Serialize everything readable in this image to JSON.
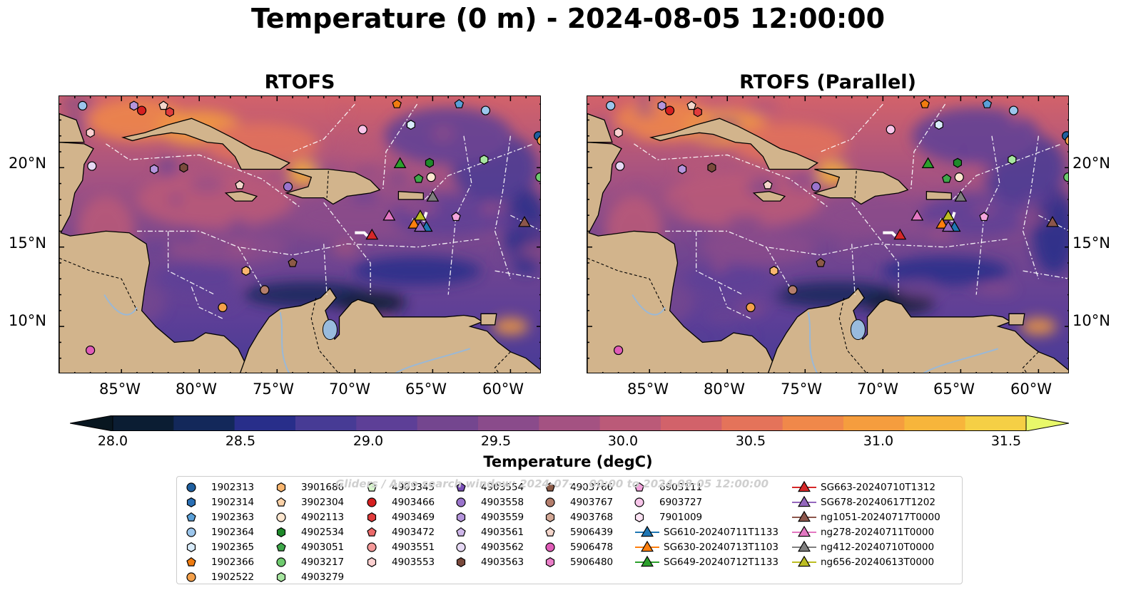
{
  "title": "Temperature (0 m) - 2024-08-05 12:00:00",
  "panels": [
    {
      "title": "RTOFS"
    },
    {
      "title": "RTOFS (Parallel)"
    }
  ],
  "axes": {
    "x_ticks": [
      "85°W",
      "80°W",
      "75°W",
      "70°W",
      "65°W",
      "60°W"
    ],
    "y_ticks": [
      "20°N",
      "15°N",
      "10°N"
    ],
    "lon_range": [
      -89,
      -58
    ],
    "lat_range": [
      7,
      24.5
    ]
  },
  "colorbar": {
    "label": "Temperature (degC)",
    "ticks": [
      "28.0",
      "28.5",
      "29.0",
      "29.5",
      "30.0",
      "30.5",
      "31.0",
      "31.5"
    ],
    "range": [
      28.0,
      31.5
    ],
    "colors": [
      "#0b1d33",
      "#13285a",
      "#282e8a",
      "#473b95",
      "#5d3f97",
      "#74468f",
      "#8a4b8b",
      "#a45282",
      "#bb5a78",
      "#d2626a",
      "#e4735a",
      "#f0884a",
      "#f59d3e",
      "#f7b53b",
      "#f5cf45"
    ],
    "extend_low": "#081620",
    "extend_high": "#e8f86a"
  },
  "legend": {
    "watermark": "Gliders / Argo search window: 2024-07-... 00:00 to 2024-08-05 12:00:00",
    "columns": [
      [
        {
          "label": "1902313",
          "marker": "circle",
          "color": "#1f5f9f"
        },
        {
          "label": "1902314",
          "marker": "hexagon",
          "color": "#2a6fb5"
        },
        {
          "label": "1902363",
          "marker": "pentagon",
          "color": "#5aa0d8"
        },
        {
          "label": "1902364",
          "marker": "circle",
          "color": "#9cc6ec"
        },
        {
          "label": "1902365",
          "marker": "hexagon",
          "color": "#d8ebfa"
        },
        {
          "label": "1902366",
          "marker": "pentagon",
          "color": "#f07c10"
        },
        {
          "label": "1902522",
          "marker": "circle",
          "color": "#f4a04a"
        }
      ],
      [
        {
          "label": "3901686",
          "marker": "hexagon",
          "color": "#f9b66f"
        },
        {
          "label": "3902304",
          "marker": "pentagon",
          "color": "#fcd2a8"
        },
        {
          "label": "4902113",
          "marker": "circle",
          "color": "#fde6cf"
        },
        {
          "label": "4902534",
          "marker": "hexagon",
          "color": "#1e8a2a"
        },
        {
          "label": "4903051",
          "marker": "pentagon",
          "color": "#3ea84a"
        },
        {
          "label": "4903217",
          "marker": "circle",
          "color": "#6fcb6f"
        },
        {
          "label": "4903279",
          "marker": "hexagon",
          "color": "#a7e6a0"
        }
      ],
      [
        {
          "label": "4903345",
          "marker": "pentagon",
          "color": "#d7f5cc"
        },
        {
          "label": "4903466",
          "marker": "circle",
          "color": "#d62020"
        },
        {
          "label": "4903469",
          "marker": "hexagon",
          "color": "#e03c3c"
        },
        {
          "label": "4903472",
          "marker": "pentagon",
          "color": "#ec6a6a"
        },
        {
          "label": "4903551",
          "marker": "circle",
          "color": "#f49999"
        },
        {
          "label": "4903553",
          "marker": "hexagon",
          "color": "#fbd0d0"
        }
      ],
      [
        {
          "label": "4903554",
          "marker": "pentagon",
          "color": "#7a4fb8"
        },
        {
          "label": "4903558",
          "marker": "circle",
          "color": "#9a74cc"
        },
        {
          "label": "4903559",
          "marker": "hexagon",
          "color": "#b595dc"
        },
        {
          "label": "4903561",
          "marker": "pentagon",
          "color": "#cfb7ea"
        },
        {
          "label": "4903562",
          "marker": "circle",
          "color": "#e6d9f4"
        },
        {
          "label": "4903563",
          "marker": "hexagon",
          "color": "#7a4a3c"
        }
      ],
      [
        {
          "label": "4903766",
          "marker": "pentagon",
          "color": "#8c5a46"
        },
        {
          "label": "4903767",
          "marker": "circle",
          "color": "#b47e6c"
        },
        {
          "label": "4903768",
          "marker": "hexagon",
          "color": "#d3a896"
        },
        {
          "label": "5906439",
          "marker": "pentagon",
          "color": "#f4d6cb"
        },
        {
          "label": "5906478",
          "marker": "circle",
          "color": "#e05cb8"
        },
        {
          "label": "5906480",
          "marker": "hexagon",
          "color": "#ea7ec8"
        }
      ],
      [
        {
          "label": "6903111",
          "marker": "pentagon",
          "color": "#f3a4dc"
        },
        {
          "label": "6903727",
          "marker": "circle",
          "color": "#f8c6ea"
        },
        {
          "label": "7901009",
          "marker": "hexagon",
          "color": "#fde3f4"
        },
        {
          "label": "SG610-20240711T1133",
          "marker": "triangle",
          "color": "#1f77b4",
          "line": true
        },
        {
          "label": "SG630-20240713T1103",
          "marker": "triangle",
          "color": "#ff7f0e",
          "line": true
        },
        {
          "label": "SG649-20240712T1133",
          "marker": "triangle",
          "color": "#2ca02c",
          "line": true
        }
      ],
      [
        {
          "label": "SG663-20240710T1312",
          "marker": "triangle",
          "color": "#d62728",
          "line": true
        },
        {
          "label": "SG678-20240617T1202",
          "marker": "triangle",
          "color": "#9467bd",
          "line": true
        },
        {
          "label": "ng1051-20240717T0000",
          "marker": "triangle",
          "color": "#8c564b",
          "line": true
        },
        {
          "label": "ng278-20240711T0000",
          "marker": "triangle",
          "color": "#e377c2",
          "line": true
        },
        {
          "label": "ng412-20240710T0000",
          "marker": "triangle",
          "color": "#7f7f7f",
          "line": true
        },
        {
          "label": "ng656-20240613T0000",
          "marker": "triangle",
          "color": "#bcbd22",
          "line": true
        }
      ]
    ]
  }
}
